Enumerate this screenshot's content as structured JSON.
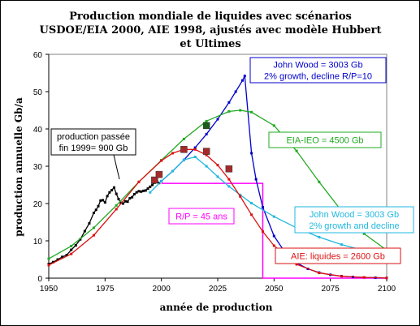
{
  "chart_data": {
    "type": "line",
    "title": "Production mondiale de liquides avec scénarios USDOE/EIA 2000, AIE 1998, ajustés avec modèle Hubbert et Ultimes",
    "title_lines": [
      "Production mondiale de liquides avec scénarios",
      "USDOE/EIA 2000, AIE 1998, ajustés avec modèle Hubbert",
      "et Ultimes"
    ],
    "xlabel": "année de production",
    "ylabel": "production annuelle Gb/a",
    "xlim": [
      1950,
      2100
    ],
    "ylim": [
      0,
      60
    ],
    "x_ticks": [
      1950,
      1975,
      2000,
      2025,
      2050,
      2075,
      2100
    ],
    "y_ticks": [
      0,
      10,
      20,
      30,
      40,
      50,
      60
    ],
    "grid": false,
    "series": [
      {
        "name": "production passée fin 1999= 900 Gb",
        "color": "#000000",
        "x": [
          1950,
          1952,
          1954,
          1956,
          1958,
          1960,
          1962,
          1964,
          1966,
          1968,
          1970,
          1971,
          1972,
          1973,
          1974,
          1975,
          1976,
          1977,
          1978,
          1979,
          1980,
          1981,
          1982,
          1983,
          1984,
          1985,
          1986,
          1987,
          1988,
          1989,
          1990,
          1991,
          1992,
          1993,
          1994,
          1995,
          1996,
          1997,
          1998,
          1999
        ],
        "values": [
          3.8,
          4.3,
          5.0,
          5.7,
          6.2,
          7.6,
          8.8,
          10.4,
          12.6,
          14.7,
          17.5,
          18.3,
          19.3,
          20.8,
          20.9,
          20.3,
          22.0,
          23.0,
          23.6,
          24.3,
          22.6,
          21.2,
          20.2,
          20.0,
          20.6,
          20.5,
          21.4,
          21.7,
          22.5,
          23.0,
          23.3,
          23.2,
          23.4,
          23.5,
          24.0,
          24.5,
          25.0,
          25.6,
          26.0,
          25.5
        ]
      },
      {
        "name": "John Wood = 3003 Gb 2% growth, decline R/P=10",
        "color": "#0000cc",
        "x": [
          2000,
          2005,
          2010,
          2015,
          2020,
          2025,
          2030,
          2033,
          2036,
          2037,
          2040,
          2042,
          2045,
          2050,
          2055,
          2060,
          2065,
          2070,
          2075,
          2080,
          2085,
          2090,
          2095,
          2100
        ],
        "values": [
          26.0,
          28.7,
          31.7,
          35.0,
          38.6,
          42.6,
          47.1,
          50.0,
          53.0,
          54.2,
          33.5,
          26.5,
          19.0,
          11.3,
          6.8,
          4.1,
          2.5,
          1.5,
          0.9,
          0.55,
          0.33,
          0.2,
          0.12,
          0.07
        ]
      },
      {
        "name": "EIA-IEO = 4500 Gb",
        "color": "#22aa22",
        "x": [
          1950,
          1960,
          1970,
          1980,
          1990,
          2000,
          2010,
          2020,
          2030,
          2035,
          2040,
          2050,
          2060,
          2070,
          2080,
          2090,
          2100
        ],
        "values": [
          5.2,
          8.6,
          13.5,
          19.5,
          25.8,
          31.6,
          37.3,
          42.1,
          44.7,
          45.0,
          44.5,
          40.9,
          34.1,
          25.8,
          18.0,
          11.9,
          7.5
        ]
      },
      {
        "name": "John Wood = 3003 Gb 2% growth and decline",
        "color": "#22b8e0",
        "x": [
          1995,
          2000,
          2005,
          2010,
          2015,
          2020,
          2025,
          2030,
          2035,
          2040,
          2050,
          2060,
          2070,
          2080,
          2090,
          2100
        ],
        "values": [
          23.0,
          26.0,
          28.7,
          31.7,
          32.5,
          30.0,
          27.2,
          24.6,
          22.3,
          20.1,
          16.5,
          13.5,
          11.0,
          9.0,
          7.4,
          6.0
        ]
      },
      {
        "name": "AIE: liquides = 2600 Gb",
        "color": "#dd1111",
        "x": [
          1950,
          1960,
          1970,
          1980,
          1990,
          2000,
          2005,
          2010,
          2015,
          2020,
          2025,
          2030,
          2035,
          2040,
          2045,
          2050,
          2060,
          2070,
          2080,
          2090,
          2100
        ],
        "values": [
          3.5,
          6.5,
          11.5,
          18.5,
          25.8,
          31.5,
          33.5,
          34.5,
          34.5,
          33.0,
          30.3,
          26.5,
          21.9,
          17.0,
          12.5,
          8.7,
          3.7,
          1.4,
          0.5,
          0.2,
          0.05
        ]
      }
    ],
    "markers": [
      {
        "x": 1997,
        "y": 26.3,
        "color": "#a52a2a"
      },
      {
        "x": 1999,
        "y": 27.8,
        "color": "#a52a2a"
      },
      {
        "x": 2010,
        "y": 34.5,
        "color": "#a52a2a"
      },
      {
        "x": 2020,
        "y": 34.0,
        "color": "#a52a2a"
      },
      {
        "x": 2030,
        "y": 29.3,
        "color": "#a52a2a"
      },
      {
        "x": 2020,
        "y": 40.9,
        "color": "#1a5c1a"
      }
    ],
    "rp_line": {
      "color": "#ff00ff",
      "x": [
        2000,
        2045,
        2045,
        2046,
        2100
      ],
      "values": [
        25.4,
        25.4,
        0,
        0,
        0
      ]
    },
    "annotations": [
      {
        "id": "past",
        "lines": [
          "production passée",
          "fin 1999= 900 Gb"
        ],
        "color": "#000000",
        "border": "#000000"
      },
      {
        "id": "wood1",
        "lines": [
          "John Wood = 3003 Gb",
          "2% growth, decline R/P=10"
        ],
        "color": "#0000cc",
        "border": "#0000cc"
      },
      {
        "id": "eia",
        "lines": [
          "EIA-IEO = 4500 Gb"
        ],
        "color": "#22aa22",
        "border": "#22aa22"
      },
      {
        "id": "rp",
        "lines": [
          "R/P = 45 ans"
        ],
        "color": "#ff00ff",
        "border": "#ff00ff"
      },
      {
        "id": "wood2",
        "lines": [
          "John Wood = 3003 Gb",
          "2% growth and decline"
        ],
        "color": "#22b8e0",
        "border": "#22b8e0"
      },
      {
        "id": "aie",
        "lines": [
          "AIE: liquides = 2600 Gb"
        ],
        "color": "#dd1111",
        "border": "#dd1111"
      }
    ]
  }
}
